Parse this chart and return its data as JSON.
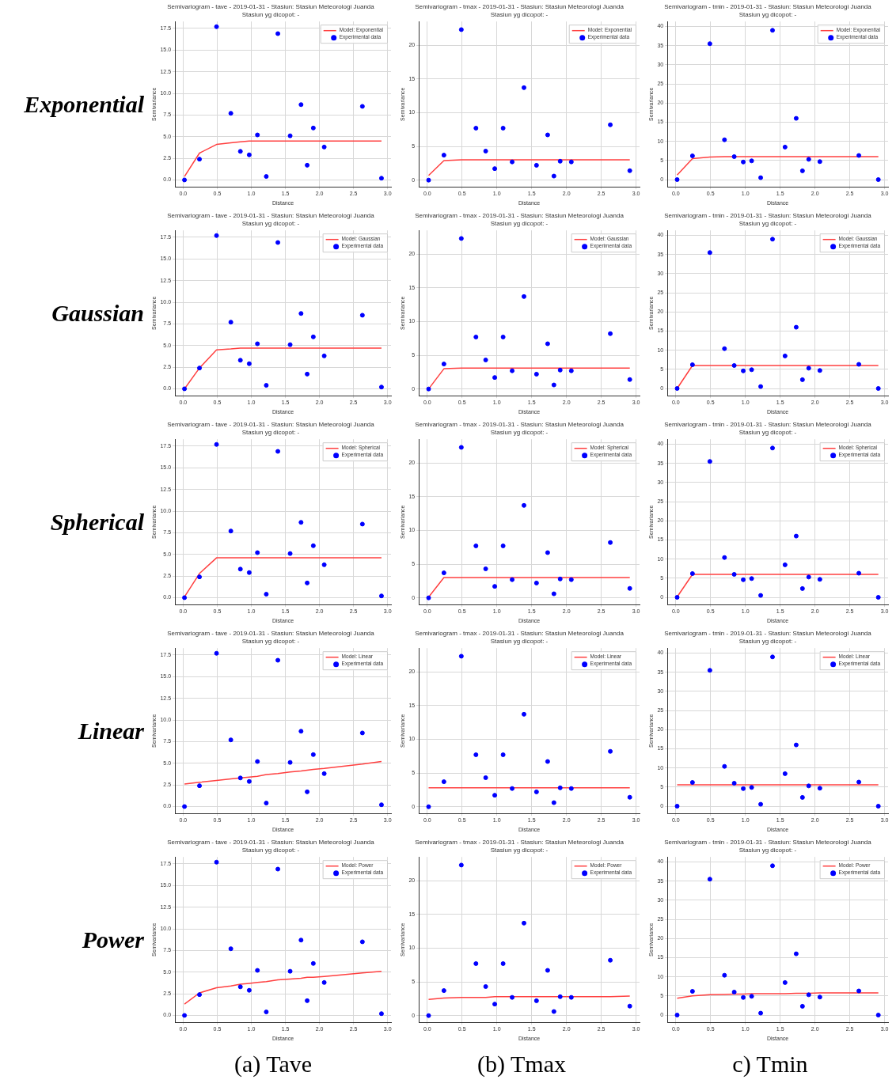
{
  "chart_data": [
    {
      "type": "scatter",
      "title": "Semivariogram - tave - 2019-01-31 - Stasiun: Stasiun Meteorologi Juanda",
      "subtitle": "Stasiun yg dicopot: -",
      "xlabel": "Distance",
      "ylabel": "Semivariance",
      "annotations": [
        "Exponential"
      ],
      "x": [
        0.02,
        0.24,
        0.49,
        0.7,
        0.84,
        0.97,
        1.09,
        1.22,
        1.39,
        1.57,
        1.73,
        1.82,
        1.91,
        2.07,
        2.63,
        2.91
      ],
      "series": [
        {
          "name": "Model: Exponential",
          "type": "line",
          "marker": "none",
          "color": "#ff4040",
          "values": [
            0.4,
            3.1,
            4.1,
            4.3,
            4.4,
            4.5,
            4.5,
            4.5,
            4.5,
            4.5,
            4.5,
            4.5,
            4.5,
            4.5,
            4.5,
            4.5
          ]
        },
        {
          "name": "Experimental data",
          "type": "scatter",
          "color": "#0000ff",
          "values": [
            0,
            2.4,
            17.7,
            7.7,
            3.3,
            2.9,
            5.2,
            0.4,
            16.9,
            5.1,
            8.7,
            1.7,
            6,
            3.8,
            8.5,
            0.2
          ]
        }
      ],
      "xlim": [
        -0.12,
        3.05
      ],
      "xticks": [
        {
          "value": 0,
          "label": "0.0"
        },
        0.5,
        {
          "value": 1,
          "label": "1.0"
        },
        1.5,
        {
          "value": 2,
          "label": "2.0"
        },
        2.5,
        {
          "value": 3,
          "label": "3.0"
        }
      ],
      "ylim": [
        -0.8,
        18.3
      ],
      "yticks": [
        {
          "value": 0,
          "label": "0.0"
        },
        2.5,
        {
          "value": 5,
          "label": "5.0"
        },
        7.5,
        {
          "value": 10,
          "label": "10.0"
        },
        12.5,
        {
          "value": 15,
          "label": "15.0"
        },
        17.5
      ],
      "grid": true,
      "legend": "top right",
      "marker": "circle"
    },
    {
      "type": "scatter",
      "title": "Semivariogram - tmax - 2019-01-31 - Stasiun: Stasiun Meteorologi Juanda",
      "subtitle": "Stasiun yg dicopot: -",
      "xlabel": "Distance",
      "ylabel": "Semivariance",
      "x": [
        0.02,
        0.24,
        0.49,
        0.7,
        0.84,
        0.97,
        1.09,
        1.22,
        1.39,
        1.57,
        1.73,
        1.82,
        1.91,
        2.07,
        2.63,
        2.91
      ],
      "series": [
        {
          "name": "Model: Exponential",
          "type": "line",
          "marker": "none",
          "color": "#ff4040",
          "values": [
            0.7,
            2.9,
            3,
            3,
            3,
            3,
            3,
            3,
            3,
            3,
            3,
            3,
            3,
            3,
            3,
            3
          ]
        },
        {
          "name": "Experimental data",
          "type": "scatter",
          "color": "#0000ff",
          "values": [
            0,
            3.7,
            22.3,
            7.7,
            4.3,
            1.7,
            7.7,
            2.7,
            13.7,
            2.2,
            6.7,
            0.6,
            2.8,
            2.7,
            8.2,
            1.4
          ]
        }
      ],
      "xlim": [
        -0.12,
        3.05
      ],
      "xticks": [
        {
          "value": 0,
          "label": "0.0"
        },
        0.5,
        {
          "value": 1,
          "label": "1.0"
        },
        1.5,
        {
          "value": 2,
          "label": "2.0"
        },
        2.5,
        {
          "value": 3,
          "label": "3.0"
        }
      ],
      "ylim": [
        -1,
        23.5
      ],
      "yticks": [
        0,
        5,
        10,
        15,
        20
      ],
      "grid": true,
      "legend": "top right",
      "marker": "circle"
    },
    {
      "type": "scatter",
      "title": "Semivariogram - tmin - 2019-01-31 - Stasiun: Stasiun Meteorologi Juanda",
      "subtitle": "Stasiun yg dicopot: -",
      "xlabel": "Distance",
      "ylabel": "Semivariance",
      "x": [
        0.02,
        0.24,
        0.49,
        0.7,
        0.84,
        0.97,
        1.09,
        1.22,
        1.39,
        1.57,
        1.73,
        1.82,
        1.91,
        2.07,
        2.63,
        2.91
      ],
      "series": [
        {
          "name": "Model: Exponential",
          "type": "line",
          "marker": "none",
          "color": "#ff4040",
          "values": [
            1.2,
            5.5,
            5.9,
            6,
            6,
            6,
            6,
            6,
            6,
            6,
            6,
            6,
            6,
            6,
            6,
            6
          ]
        },
        {
          "name": "Experimental data",
          "type": "scatter",
          "color": "#0000ff",
          "values": [
            0,
            6.2,
            35.5,
            10.4,
            6,
            4.6,
            4.9,
            0.5,
            39,
            8.5,
            16,
            2.3,
            5.3,
            4.7,
            6.3,
            0
          ]
        }
      ],
      "xlim": [
        -0.12,
        3.05
      ],
      "xticks": [
        {
          "value": 0,
          "label": "0.0"
        },
        0.5,
        {
          "value": 1,
          "label": "1.0"
        },
        1.5,
        {
          "value": 2,
          "label": "2.0"
        },
        2.5,
        {
          "value": 3,
          "label": "3.0"
        }
      ],
      "ylim": [
        -1.9,
        41.3
      ],
      "yticks": [
        0,
        5,
        10,
        15,
        20,
        25,
        30,
        35,
        40
      ],
      "grid": true,
      "legend": "top right",
      "marker": "circle"
    },
    {
      "type": "scatter",
      "title": "Semivariogram - tave - 2019-01-31 - Stasiun: Stasiun Meteorologi Juanda",
      "subtitle": "Stasiun yg dicopot: -",
      "xlabel": "Distance",
      "ylabel": "Semivariance",
      "annotations": [
        "Gaussian"
      ],
      "x": [
        0.02,
        0.24,
        0.49,
        0.7,
        0.84,
        0.97,
        1.09,
        1.22,
        1.39,
        1.57,
        1.73,
        1.82,
        1.91,
        2.07,
        2.63,
        2.91
      ],
      "series": [
        {
          "name": "Model: Gaussian",
          "type": "line",
          "marker": "none",
          "color": "#ff4040",
          "values": [
            0,
            2.4,
            4.5,
            4.6,
            4.7,
            4.7,
            4.7,
            4.7,
            4.7,
            4.7,
            4.7,
            4.7,
            4.7,
            4.7,
            4.7,
            4.7
          ]
        },
        {
          "name": "Experimental data",
          "type": "scatter",
          "color": "#0000ff",
          "values": [
            0,
            2.4,
            17.7,
            7.7,
            3.3,
            2.9,
            5.2,
            0.4,
            16.9,
            5.1,
            8.7,
            1.7,
            6,
            3.8,
            8.5,
            0.2
          ]
        }
      ],
      "xlim": [
        -0.12,
        3.05
      ],
      "xticks": [
        {
          "value": 0,
          "label": "0.0"
        },
        0.5,
        {
          "value": 1,
          "label": "1.0"
        },
        1.5,
        {
          "value": 2,
          "label": "2.0"
        },
        2.5,
        {
          "value": 3,
          "label": "3.0"
        }
      ],
      "ylim": [
        -0.8,
        18.3
      ],
      "yticks": [
        {
          "value": 0,
          "label": "0.0"
        },
        2.5,
        {
          "value": 5,
          "label": "5.0"
        },
        7.5,
        {
          "value": 10,
          "label": "10.0"
        },
        12.5,
        {
          "value": 15,
          "label": "15.0"
        },
        17.5
      ],
      "grid": true,
      "legend": "top right",
      "marker": "circle"
    },
    {
      "type": "scatter",
      "title": "Semivariogram - tmax - 2019-01-31 - Stasiun: Stasiun Meteorologi Juanda",
      "subtitle": "Stasiun yg dicopot: -",
      "xlabel": "Distance",
      "ylabel": "Semivariance",
      "x": [
        0.02,
        0.24,
        0.49,
        0.7,
        0.84,
        0.97,
        1.09,
        1.22,
        1.39,
        1.57,
        1.73,
        1.82,
        1.91,
        2.07,
        2.63,
        2.91
      ],
      "series": [
        {
          "name": "Model: Gaussian",
          "type": "line",
          "marker": "none",
          "color": "#ff4040",
          "values": [
            0,
            3,
            3.1,
            3.1,
            3.1,
            3.1,
            3.1,
            3.1,
            3.1,
            3.1,
            3.1,
            3.1,
            3.1,
            3.1,
            3.1,
            3.1
          ]
        },
        {
          "name": "Experimental data",
          "type": "scatter",
          "color": "#0000ff",
          "values": [
            0,
            3.7,
            22.3,
            7.7,
            4.3,
            1.7,
            7.7,
            2.7,
            13.7,
            2.2,
            6.7,
            0.6,
            2.8,
            2.7,
            8.2,
            1.4
          ]
        }
      ],
      "xlim": [
        -0.12,
        3.05
      ],
      "xticks": [
        {
          "value": 0,
          "label": "0.0"
        },
        0.5,
        {
          "value": 1,
          "label": "1.0"
        },
        1.5,
        {
          "value": 2,
          "label": "2.0"
        },
        2.5,
        {
          "value": 3,
          "label": "3.0"
        }
      ],
      "ylim": [
        -1,
        23.5
      ],
      "yticks": [
        0,
        5,
        10,
        15,
        20
      ],
      "grid": true,
      "legend": "top right",
      "marker": "circle"
    },
    {
      "type": "scatter",
      "title": "Semivariogram - tmin - 2019-01-31 - Stasiun: Stasiun Meteorologi Juanda",
      "subtitle": "Stasiun yg dicopot: -",
      "xlabel": "Distance",
      "ylabel": "Semivariance",
      "x": [
        0.02,
        0.24,
        0.49,
        0.7,
        0.84,
        0.97,
        1.09,
        1.22,
        1.39,
        1.57,
        1.73,
        1.82,
        1.91,
        2.07,
        2.63,
        2.91
      ],
      "series": [
        {
          "name": "Model: Gaussian",
          "type": "line",
          "marker": "none",
          "color": "#ff4040",
          "values": [
            0,
            6,
            6,
            6,
            6,
            6,
            6,
            6,
            6,
            6,
            6,
            6,
            6,
            6,
            6,
            6
          ]
        },
        {
          "name": "Experimental data",
          "type": "scatter",
          "color": "#0000ff",
          "values": [
            0,
            6.2,
            35.5,
            10.4,
            6,
            4.6,
            4.9,
            0.5,
            39,
            8.5,
            16,
            2.3,
            5.3,
            4.7,
            6.3,
            0
          ]
        }
      ],
      "xlim": [
        -0.12,
        3.05
      ],
      "xticks": [
        {
          "value": 0,
          "label": "0.0"
        },
        0.5,
        {
          "value": 1,
          "label": "1.0"
        },
        1.5,
        {
          "value": 2,
          "label": "2.0"
        },
        2.5,
        {
          "value": 3,
          "label": "3.0"
        }
      ],
      "ylim": [
        -1.9,
        41.3
      ],
      "yticks": [
        0,
        5,
        10,
        15,
        20,
        25,
        30,
        35,
        40
      ],
      "grid": true,
      "legend": "top right",
      "marker": "circle"
    },
    {
      "type": "scatter",
      "title": "Semivariogram - tave - 2019-01-31 - Stasiun: Stasiun Meteorologi Juanda",
      "subtitle": "Stasiun yg dicopot: -",
      "xlabel": "Distance",
      "ylabel": "Semivariance",
      "annotations": [
        "Spherical"
      ],
      "x": [
        0.02,
        0.24,
        0.49,
        0.7,
        0.84,
        0.97,
        1.09,
        1.22,
        1.39,
        1.57,
        1.73,
        1.82,
        1.91,
        2.07,
        2.63,
        2.91
      ],
      "series": [
        {
          "name": "Model: Spherical",
          "type": "line",
          "marker": "none",
          "color": "#ff4040",
          "values": [
            0.1,
            2.8,
            4.6,
            4.6,
            4.6,
            4.6,
            4.6,
            4.6,
            4.6,
            4.6,
            4.6,
            4.6,
            4.6,
            4.6,
            4.6,
            4.6
          ]
        },
        {
          "name": "Experimental data",
          "type": "scatter",
          "color": "#0000ff",
          "values": [
            0,
            2.4,
            17.7,
            7.7,
            3.3,
            2.9,
            5.2,
            0.4,
            16.9,
            5.1,
            8.7,
            1.7,
            6,
            3.8,
            8.5,
            0.2
          ]
        }
      ],
      "xlim": [
        -0.12,
        3.05
      ],
      "xticks": [
        {
          "value": 0,
          "label": "0.0"
        },
        0.5,
        {
          "value": 1,
          "label": "1.0"
        },
        1.5,
        {
          "value": 2,
          "label": "2.0"
        },
        2.5,
        {
          "value": 3,
          "label": "3.0"
        }
      ],
      "ylim": [
        -0.8,
        18.3
      ],
      "yticks": [
        {
          "value": 0,
          "label": "0.0"
        },
        2.5,
        {
          "value": 5,
          "label": "5.0"
        },
        7.5,
        {
          "value": 10,
          "label": "10.0"
        },
        12.5,
        {
          "value": 15,
          "label": "15.0"
        },
        17.5
      ],
      "grid": true,
      "legend": "top right",
      "marker": "circle"
    },
    {
      "type": "scatter",
      "title": "Semivariogram - tmax - 2019-01-31 - Stasiun: Stasiun Meteorologi Juanda",
      "subtitle": "Stasiun yg dicopot: -",
      "xlabel": "Distance",
      "ylabel": "Semivariance",
      "x": [
        0.02,
        0.24,
        0.49,
        0.7,
        0.84,
        0.97,
        1.09,
        1.22,
        1.39,
        1.57,
        1.73,
        1.82,
        1.91,
        2.07,
        2.63,
        2.91
      ],
      "series": [
        {
          "name": "Model: Spherical",
          "type": "line",
          "marker": "none",
          "color": "#ff4040",
          "values": [
            0.1,
            3,
            3,
            3,
            3,
            3,
            3,
            3,
            3,
            3,
            3,
            3,
            3,
            3,
            3,
            3
          ]
        },
        {
          "name": "Experimental data",
          "type": "scatter",
          "color": "#0000ff",
          "values": [
            0,
            3.7,
            22.3,
            7.7,
            4.3,
            1.7,
            7.7,
            2.7,
            13.7,
            2.2,
            6.7,
            0.6,
            2.8,
            2.7,
            8.2,
            1.4
          ]
        }
      ],
      "xlim": [
        -0.12,
        3.05
      ],
      "xticks": [
        {
          "value": 0,
          "label": "0.0"
        },
        0.5,
        {
          "value": 1,
          "label": "1.0"
        },
        1.5,
        {
          "value": 2,
          "label": "2.0"
        },
        2.5,
        {
          "value": 3,
          "label": "3.0"
        }
      ],
      "ylim": [
        -1,
        23.5
      ],
      "yticks": [
        0,
        5,
        10,
        15,
        20
      ],
      "grid": true,
      "legend": "top right",
      "marker": "circle"
    },
    {
      "type": "scatter",
      "title": "Semivariogram - tmin - 2019-01-31 - Stasiun: Stasiun Meteorologi Juanda",
      "subtitle": "Stasiun yg dicopot: -",
      "xlabel": "Distance",
      "ylabel": "Semivariance",
      "x": [
        0.02,
        0.24,
        0.49,
        0.7,
        0.84,
        0.97,
        1.09,
        1.22,
        1.39,
        1.57,
        1.73,
        1.82,
        1.91,
        2.07,
        2.63,
        2.91
      ],
      "series": [
        {
          "name": "Model: Spherical",
          "type": "line",
          "marker": "none",
          "color": "#ff4040",
          "values": [
            0.1,
            6,
            6,
            6,
            6,
            6,
            6,
            6,
            6,
            6,
            6,
            6,
            6,
            6,
            6,
            6
          ]
        },
        {
          "name": "Experimental data",
          "type": "scatter",
          "color": "#0000ff",
          "values": [
            0,
            6.2,
            35.5,
            10.4,
            6,
            4.6,
            4.9,
            0.5,
            39,
            8.5,
            16,
            2.3,
            5.3,
            4.7,
            6.3,
            0
          ]
        }
      ],
      "xlim": [
        -0.12,
        3.05
      ],
      "xticks": [
        {
          "value": 0,
          "label": "0.0"
        },
        0.5,
        {
          "value": 1,
          "label": "1.0"
        },
        1.5,
        {
          "value": 2,
          "label": "2.0"
        },
        2.5,
        {
          "value": 3,
          "label": "3.0"
        }
      ],
      "ylim": [
        -1.9,
        41.3
      ],
      "yticks": [
        0,
        5,
        10,
        15,
        20,
        25,
        30,
        35,
        40
      ],
      "grid": true,
      "legend": "top right",
      "marker": "circle"
    },
    {
      "type": "scatter",
      "title": "Semivariogram - tave - 2019-01-31 - Stasiun: Stasiun Meteorologi Juanda",
      "subtitle": "Stasiun yg dicopot: -",
      "xlabel": "Distance",
      "ylabel": "Semivariance",
      "annotations": [
        "Linear"
      ],
      "x": [
        0.02,
        0.24,
        0.49,
        0.7,
        0.84,
        0.97,
        1.09,
        1.22,
        1.39,
        1.57,
        1.73,
        1.82,
        1.91,
        2.07,
        2.63,
        2.91
      ],
      "series": [
        {
          "name": "Model: Linear",
          "type": "line",
          "marker": "none",
          "color": "#ff4040",
          "values": [
            2.6,
            2.8,
            3,
            3.2,
            3.3,
            3.4,
            3.5,
            3.7,
            3.8,
            4,
            4.1,
            4.2,
            4.3,
            4.4,
            4.9,
            5.2
          ]
        },
        {
          "name": "Experimental data",
          "type": "scatter",
          "color": "#0000ff",
          "values": [
            0,
            2.4,
            17.7,
            7.7,
            3.3,
            2.9,
            5.2,
            0.4,
            16.9,
            5.1,
            8.7,
            1.7,
            6,
            3.8,
            8.5,
            0.2
          ]
        }
      ],
      "xlim": [
        -0.12,
        3.05
      ],
      "xticks": [
        {
          "value": 0,
          "label": "0.0"
        },
        0.5,
        {
          "value": 1,
          "label": "1.0"
        },
        1.5,
        {
          "value": 2,
          "label": "2.0"
        },
        2.5,
        {
          "value": 3,
          "label": "3.0"
        }
      ],
      "ylim": [
        -0.8,
        18.3
      ],
      "yticks": [
        {
          "value": 0,
          "label": "0.0"
        },
        2.5,
        {
          "value": 5,
          "label": "5.0"
        },
        7.5,
        {
          "value": 10,
          "label": "10.0"
        },
        12.5,
        {
          "value": 15,
          "label": "15.0"
        },
        17.5
      ],
      "grid": true,
      "legend": "top right",
      "marker": "circle"
    },
    {
      "type": "scatter",
      "title": "Semivariogram - tmax - 2019-01-31 - Stasiun: Stasiun Meteorologi Juanda",
      "subtitle": "Stasiun yg dicopot: -",
      "xlabel": "Distance",
      "ylabel": "Semivariance",
      "x": [
        0.02,
        0.24,
        0.49,
        0.7,
        0.84,
        0.97,
        1.09,
        1.22,
        1.39,
        1.57,
        1.73,
        1.82,
        1.91,
        2.07,
        2.63,
        2.91
      ],
      "series": [
        {
          "name": "Model: Linear",
          "type": "line",
          "marker": "none",
          "color": "#ff4040",
          "values": [
            2.8,
            2.8,
            2.8,
            2.8,
            2.8,
            2.8,
            2.8,
            2.8,
            2.8,
            2.8,
            2.8,
            2.8,
            2.8,
            2.8,
            2.8,
            2.8
          ]
        },
        {
          "name": "Experimental data",
          "type": "scatter",
          "color": "#0000ff",
          "values": [
            0,
            3.7,
            22.3,
            7.7,
            4.3,
            1.7,
            7.7,
            2.7,
            13.7,
            2.2,
            6.7,
            0.6,
            2.8,
            2.7,
            8.2,
            1.4
          ]
        }
      ],
      "xlim": [
        -0.12,
        3.05
      ],
      "xticks": [
        {
          "value": 0,
          "label": "0.0"
        },
        0.5,
        {
          "value": 1,
          "label": "1.0"
        },
        1.5,
        {
          "value": 2,
          "label": "2.0"
        },
        2.5,
        {
          "value": 3,
          "label": "3.0"
        }
      ],
      "ylim": [
        -1,
        23.5
      ],
      "yticks": [
        0,
        5,
        10,
        15,
        20
      ],
      "grid": true,
      "legend": "top right",
      "marker": "circle"
    },
    {
      "type": "scatter",
      "title": "Semivariogram - tmin - 2019-01-31 - Stasiun: Stasiun Meteorologi Juanda",
      "subtitle": "Stasiun yg dicopot: -",
      "xlabel": "Distance",
      "ylabel": "Semivariance",
      "x": [
        0.02,
        0.24,
        0.49,
        0.7,
        0.84,
        0.97,
        1.09,
        1.22,
        1.39,
        1.57,
        1.73,
        1.82,
        1.91,
        2.07,
        2.63,
        2.91
      ],
      "series": [
        {
          "name": "Model: Linear",
          "type": "line",
          "marker": "none",
          "color": "#ff4040",
          "values": [
            5.6,
            5.6,
            5.6,
            5.6,
            5.6,
            5.6,
            5.6,
            5.6,
            5.6,
            5.6,
            5.6,
            5.6,
            5.6,
            5.6,
            5.6,
            5.6
          ]
        },
        {
          "name": "Experimental data",
          "type": "scatter",
          "color": "#0000ff",
          "values": [
            0,
            6.2,
            35.5,
            10.4,
            6,
            4.6,
            4.9,
            0.5,
            39,
            8.5,
            16,
            2.3,
            5.3,
            4.7,
            6.3,
            0
          ]
        }
      ],
      "xlim": [
        -0.12,
        3.05
      ],
      "xticks": [
        {
          "value": 0,
          "label": "0.0"
        },
        0.5,
        {
          "value": 1,
          "label": "1.0"
        },
        1.5,
        {
          "value": 2,
          "label": "2.0"
        },
        2.5,
        {
          "value": 3,
          "label": "3.0"
        }
      ],
      "ylim": [
        -1.9,
        41.3
      ],
      "yticks": [
        0,
        5,
        10,
        15,
        20,
        25,
        30,
        35,
        40
      ],
      "grid": true,
      "legend": "top right",
      "marker": "circle"
    },
    {
      "type": "scatter",
      "title": "Semivariogram - tave - 2019-01-31 - Stasiun: Stasiun Meteorologi Juanda",
      "subtitle": "Stasiun yg dicopot: -",
      "xlabel": "Distance",
      "ylabel": "Semivariance",
      "annotations": [
        "Power",
        "(a) Tave"
      ],
      "x": [
        0.02,
        0.24,
        0.49,
        0.7,
        0.84,
        0.97,
        1.09,
        1.22,
        1.39,
        1.57,
        1.73,
        1.82,
        1.91,
        2.07,
        2.63,
        2.91
      ],
      "series": [
        {
          "name": "Model: Power",
          "type": "line",
          "marker": "none",
          "color": "#ff4040",
          "values": [
            1.3,
            2.6,
            3.2,
            3.4,
            3.6,
            3.7,
            3.8,
            3.9,
            4.1,
            4.2,
            4.3,
            4.4,
            4.4,
            4.5,
            4.9,
            5.1
          ]
        },
        {
          "name": "Experimental data",
          "type": "scatter",
          "color": "#0000ff",
          "values": [
            0,
            2.4,
            17.7,
            7.7,
            3.3,
            2.9,
            5.2,
            0.4,
            16.9,
            5.1,
            8.7,
            1.7,
            6,
            3.8,
            8.5,
            0.2
          ]
        }
      ],
      "xlim": [
        -0.12,
        3.05
      ],
      "xticks": [
        {
          "value": 0,
          "label": "0.0"
        },
        0.5,
        {
          "value": 1,
          "label": "1.0"
        },
        1.5,
        {
          "value": 2,
          "label": "2.0"
        },
        2.5,
        {
          "value": 3,
          "label": "3.0"
        }
      ],
      "ylim": [
        -0.8,
        18.3
      ],
      "yticks": [
        {
          "value": 0,
          "label": "0.0"
        },
        2.5,
        {
          "value": 5,
          "label": "5.0"
        },
        7.5,
        {
          "value": 10,
          "label": "10.0"
        },
        12.5,
        {
          "value": 15,
          "label": "15.0"
        },
        17.5
      ],
      "grid": true,
      "legend": "top right",
      "marker": "circle"
    },
    {
      "type": "scatter",
      "title": "Semivariogram - tmax - 2019-01-31 - Stasiun: Stasiun Meteorologi Juanda",
      "subtitle": "Stasiun yg dicopot: -",
      "xlabel": "Distance",
      "ylabel": "Semivariance",
      "annotations": [
        "(b) Tmax"
      ],
      "x": [
        0.02,
        0.24,
        0.49,
        0.7,
        0.84,
        0.97,
        1.09,
        1.22,
        1.39,
        1.57,
        1.73,
        1.82,
        1.91,
        2.07,
        2.63,
        2.91
      ],
      "series": [
        {
          "name": "Model: Power",
          "type": "line",
          "marker": "none",
          "color": "#ff4040",
          "values": [
            2.4,
            2.6,
            2.7,
            2.7,
            2.7,
            2.8,
            2.8,
            2.8,
            2.8,
            2.8,
            2.8,
            2.8,
            2.8,
            2.8,
            2.8,
            2.9
          ]
        },
        {
          "name": "Experimental data",
          "type": "scatter",
          "color": "#0000ff",
          "values": [
            0,
            3.7,
            22.3,
            7.7,
            4.3,
            1.7,
            7.7,
            2.7,
            13.7,
            2.2,
            6.7,
            0.6,
            2.8,
            2.7,
            8.2,
            1.4
          ]
        }
      ],
      "xlim": [
        -0.12,
        3.05
      ],
      "xticks": [
        {
          "value": 0,
          "label": "0.0"
        },
        0.5,
        {
          "value": 1,
          "label": "1.0"
        },
        1.5,
        {
          "value": 2,
          "label": "2.0"
        },
        2.5,
        {
          "value": 3,
          "label": "3.0"
        }
      ],
      "ylim": [
        -1,
        23.5
      ],
      "yticks": [
        0,
        5,
        10,
        15,
        20
      ],
      "grid": true,
      "legend": "top right",
      "marker": "circle"
    },
    {
      "type": "scatter",
      "title": "Semivariogram - tmin - 2019-01-31 - Stasiun: Stasiun Meteorologi Juanda",
      "subtitle": "Stasiun yg dicopot: -",
      "xlabel": "Distance",
      "ylabel": "Semivariance",
      "annotations": [
        "c) Tmin"
      ],
      "x": [
        0.02,
        0.24,
        0.49,
        0.7,
        0.84,
        0.97,
        1.09,
        1.22,
        1.39,
        1.57,
        1.73,
        1.82,
        1.91,
        2.07,
        2.63,
        2.91
      ],
      "series": [
        {
          "name": "Model: Power",
          "type": "line",
          "marker": "none",
          "color": "#ff4040",
          "values": [
            4.4,
            5,
            5.3,
            5.4,
            5.5,
            5.5,
            5.6,
            5.6,
            5.6,
            5.6,
            5.7,
            5.7,
            5.7,
            5.8,
            5.8,
            5.8
          ]
        },
        {
          "name": "Experimental data",
          "type": "scatter",
          "color": "#0000ff",
          "values": [
            0,
            6.2,
            35.5,
            10.4,
            6,
            4.6,
            4.9,
            0.5,
            39,
            8.5,
            16,
            2.3,
            5.3,
            4.7,
            6.3,
            0
          ]
        }
      ],
      "xlim": [
        -0.12,
        3.05
      ],
      "xticks": [
        {
          "value": 0,
          "label": "0.0"
        },
        0.5,
        {
          "value": 1,
          "label": "1.0"
        },
        1.5,
        {
          "value": 2,
          "label": "2.0"
        },
        2.5,
        {
          "value": 3,
          "label": "3.0"
        }
      ],
      "ylim": [
        -1.9,
        41.3
      ],
      "yticks": [
        0,
        5,
        10,
        15,
        20,
        25,
        30,
        35,
        40
      ],
      "grid": true,
      "legend": "top right",
      "marker": "circle"
    }
  ]
}
